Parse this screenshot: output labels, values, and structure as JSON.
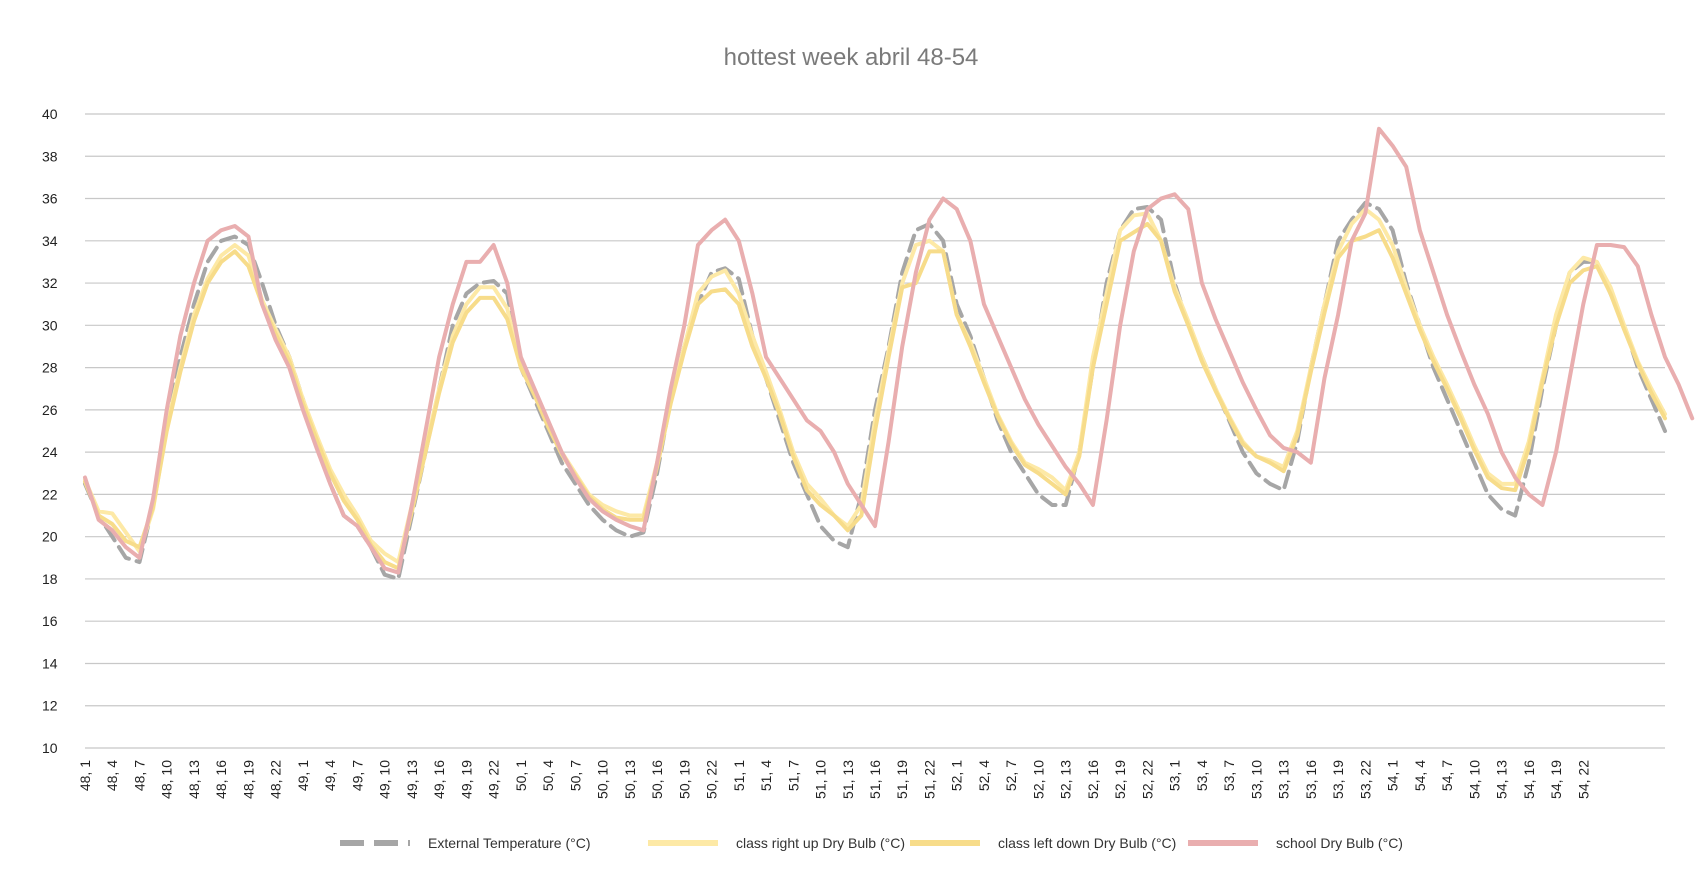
{
  "chart_data": {
    "type": "line",
    "title": "hottest week abril 48-54",
    "xlabel": "",
    "ylabel": "",
    "ylim": [
      10,
      40
    ],
    "yticks": [
      "10",
      "12",
      "14",
      "16",
      "18",
      "20",
      "22",
      "24",
      "26",
      "28",
      "30",
      "32",
      "34",
      "36",
      "38",
      "40"
    ],
    "grid": true,
    "legend_position": "bottom",
    "x_tick_labels": [
      "48, 1",
      "48, 4",
      "48, 7",
      "48, 10",
      "48, 13",
      "48, 16",
      "48, 19",
      "48, 22",
      "49, 1",
      "49, 4",
      "49, 7",
      "49, 10",
      "49, 13",
      "49, 16",
      "49, 19",
      "49, 22",
      "50, 1",
      "50, 4",
      "50, 7",
      "50, 10",
      "50, 13",
      "50, 16",
      "50, 19",
      "50, 22",
      "51, 1",
      "51, 4",
      "51, 7",
      "51, 10",
      "51, 13",
      "51, 16",
      "51, 19",
      "51, 22",
      "52, 1",
      "52, 4",
      "52, 7",
      "52, 10",
      "52, 13",
      "52, 16",
      "52, 19",
      "52, 22",
      "53, 1",
      "53, 4",
      "53, 7",
      "53, 10",
      "53, 13",
      "53, 16",
      "53, 19",
      "53, 22",
      "54, 1",
      "54, 4",
      "54, 7",
      "54, 10",
      "54, 13",
      "54, 16",
      "54, 19",
      "54, 22"
    ],
    "series": [
      {
        "name": "External Temperature (°C)",
        "color": "#a6a6a6",
        "dash": true,
        "values": [
          22.5,
          21.0,
          20.0,
          19.0,
          18.8,
          21.5,
          25.5,
          28.5,
          31.0,
          33.0,
          34.0,
          34.2,
          33.8,
          32.0,
          30.0,
          28.5,
          26.5,
          24.5,
          22.5,
          21.0,
          20.5,
          19.5,
          18.2,
          18.0,
          21.0,
          24.0,
          27.0,
          30.0,
          31.5,
          32.0,
          32.1,
          31.5,
          28.0,
          26.5,
          25.0,
          23.5,
          22.5,
          21.5,
          20.8,
          20.3,
          20.0,
          20.2,
          23.0,
          26.5,
          29.0,
          31.0,
          32.5,
          32.7,
          32.2,
          29.5,
          27.5,
          25.5,
          23.5,
          22.0,
          20.5,
          19.8,
          19.5,
          22.0,
          26.0,
          29.0,
          32.5,
          34.5,
          34.8,
          34.0,
          31.0,
          29.5,
          27.5,
          25.5,
          24.0,
          23.0,
          22.0,
          21.5,
          21.5,
          24.0,
          28.0,
          32.0,
          34.5,
          35.5,
          35.6,
          35.0,
          32.0,
          30.0,
          28.5,
          27.0,
          25.5,
          24.0,
          23.0,
          22.5,
          22.2,
          24.5,
          28.0,
          31.0,
          34.0,
          35.0,
          35.8,
          35.5,
          34.5,
          32.0,
          30.0,
          28.0,
          26.5,
          25.0,
          23.5,
          22.0,
          21.3,
          21.0,
          23.5,
          27.0,
          30.0,
          32.5,
          33.0,
          33.0,
          31.5,
          30.0,
          28.0,
          26.5,
          25.0
        ]
      },
      {
        "name": "class right up Dry Bulb (°C)",
        "color": "#fde9a6",
        "dash": false,
        "values": [
          22.7,
          21.2,
          21.1,
          20.2,
          19.3,
          21.3,
          25.2,
          28.0,
          30.5,
          32.2,
          33.3,
          33.8,
          33.3,
          31.2,
          29.8,
          28.5,
          26.5,
          24.8,
          23.2,
          22.0,
          21.0,
          19.8,
          19.2,
          18.8,
          21.5,
          24.2,
          27.0,
          29.5,
          31.0,
          31.8,
          31.8,
          30.8,
          28.0,
          26.8,
          25.3,
          24.0,
          23.0,
          22.0,
          21.5,
          21.2,
          21.0,
          21.0,
          23.5,
          26.5,
          29.0,
          31.5,
          32.3,
          32.6,
          31.5,
          29.5,
          27.8,
          26.0,
          24.0,
          22.5,
          21.8,
          21.0,
          20.5,
          21.5,
          25.5,
          28.8,
          32.0,
          33.8,
          34.0,
          33.5,
          30.5,
          29.2,
          27.5,
          25.8,
          24.5,
          23.5,
          23.2,
          22.8,
          22.2,
          24.0,
          28.5,
          31.5,
          34.5,
          35.2,
          35.3,
          34.0,
          31.8,
          30.2,
          28.5,
          27.0,
          25.7,
          24.5,
          23.8,
          23.6,
          23.3,
          25.0,
          28.0,
          31.0,
          33.5,
          34.8,
          35.5,
          35.0,
          33.8,
          31.8,
          30.0,
          28.5,
          27.2,
          25.8,
          24.3,
          23.0,
          22.5,
          22.5,
          24.5,
          27.5,
          30.5,
          32.5,
          33.2,
          33.0,
          31.8,
          30.0,
          28.3,
          27.0,
          25.8
        ]
      },
      {
        "name": "class left down Dry Bulb (°C)",
        "color": "#f7dc8a",
        "dash": false,
        "values": [
          22.6,
          21.0,
          20.6,
          19.8,
          19.5,
          21.4,
          25.0,
          27.8,
          30.2,
          32.0,
          33.0,
          33.5,
          32.8,
          31.0,
          29.6,
          28.3,
          26.3,
          24.6,
          23.0,
          21.7,
          20.8,
          19.6,
          18.8,
          18.5,
          21.2,
          24.0,
          26.8,
          29.2,
          30.6,
          31.3,
          31.3,
          30.3,
          28.0,
          26.7,
          25.2,
          23.9,
          22.9,
          21.9,
          21.3,
          20.9,
          20.8,
          20.8,
          23.3,
          26.3,
          28.8,
          31.0,
          31.6,
          31.7,
          31.0,
          29.0,
          27.5,
          25.8,
          23.8,
          22.2,
          21.5,
          21.0,
          20.3,
          21.0,
          25.0,
          28.5,
          31.8,
          32.0,
          33.5,
          33.5,
          30.5,
          29.0,
          27.3,
          25.7,
          24.4,
          23.4,
          23.0,
          22.5,
          22.0,
          23.8,
          28.0,
          31.0,
          34.0,
          34.4,
          34.8,
          34.0,
          31.6,
          30.0,
          28.3,
          26.9,
          25.6,
          24.4,
          23.8,
          23.5,
          23.1,
          24.8,
          27.8,
          30.6,
          33.2,
          34.0,
          34.2,
          34.5,
          33.2,
          31.5,
          29.8,
          28.3,
          27.0,
          25.6,
          24.1,
          22.8,
          22.3,
          22.2,
          24.2,
          27.3,
          30.0,
          32.0,
          32.6,
          32.8,
          31.5,
          29.8,
          28.2,
          26.8,
          25.6
        ]
      },
      {
        "name": "school Dry Bulb (°C)",
        "color": "#e9aeaf",
        "dash": false,
        "values": [
          22.8,
          20.8,
          20.3,
          19.5,
          19.0,
          21.8,
          26.0,
          29.5,
          32.0,
          34.0,
          34.5,
          34.7,
          34.2,
          31.0,
          29.3,
          28.0,
          26.0,
          24.2,
          22.5,
          21.0,
          20.5,
          19.5,
          18.5,
          18.3,
          21.5,
          25.0,
          28.5,
          31.0,
          33.0,
          33.0,
          33.8,
          32.0,
          28.5,
          27.0,
          25.5,
          24.0,
          22.8,
          21.8,
          21.2,
          20.8,
          20.5,
          20.3,
          23.5,
          27.0,
          30.0,
          33.8,
          34.5,
          35.0,
          34.0,
          31.5,
          28.5,
          27.5,
          26.5,
          25.5,
          25.0,
          24.0,
          22.5,
          21.5,
          20.5,
          24.5,
          29.0,
          32.5,
          35.0,
          36.0,
          35.5,
          34.0,
          31.0,
          29.5,
          28.0,
          26.5,
          25.3,
          24.3,
          23.3,
          22.5,
          21.5,
          25.5,
          30.0,
          33.5,
          35.5,
          36.0,
          36.2,
          35.5,
          32.0,
          30.3,
          28.8,
          27.3,
          26.0,
          24.8,
          24.2,
          24.0,
          23.5,
          27.5,
          30.5,
          34.0,
          35.3,
          39.3,
          38.5,
          37.5,
          34.5,
          32.5,
          30.5,
          28.8,
          27.2,
          25.8,
          24.0,
          22.8,
          22.0,
          21.5,
          24.0,
          27.5,
          31.0,
          33.8,
          33.8,
          33.7,
          32.8,
          30.5,
          28.5,
          27.2,
          25.6
        ]
      }
    ]
  }
}
